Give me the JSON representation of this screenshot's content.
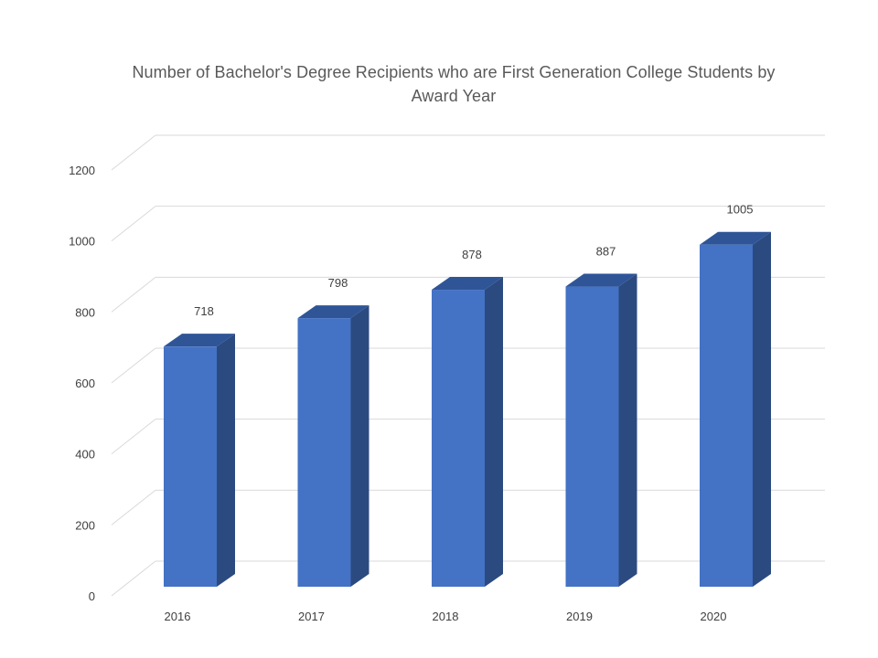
{
  "chart_data": {
    "type": "bar",
    "title": "Number of Bachelor's Degree Recipients who are First Generation College Students by Award Year",
    "categories": [
      "2016",
      "2017",
      "2018",
      "2019",
      "2020"
    ],
    "values": [
      718,
      798,
      878,
      887,
      1005
    ],
    "ylim": [
      0,
      1200
    ],
    "yticks": [
      0,
      200,
      400,
      600,
      800,
      1000,
      1200
    ],
    "xlabel": "",
    "ylabel": "",
    "grid": true,
    "legend": "none",
    "style": "3d-column",
    "colors": {
      "bar_front": "#4472C4",
      "bar_side": "#2B4A80",
      "bar_top": "#2F5597",
      "grid": "#D9D9D9"
    }
  }
}
